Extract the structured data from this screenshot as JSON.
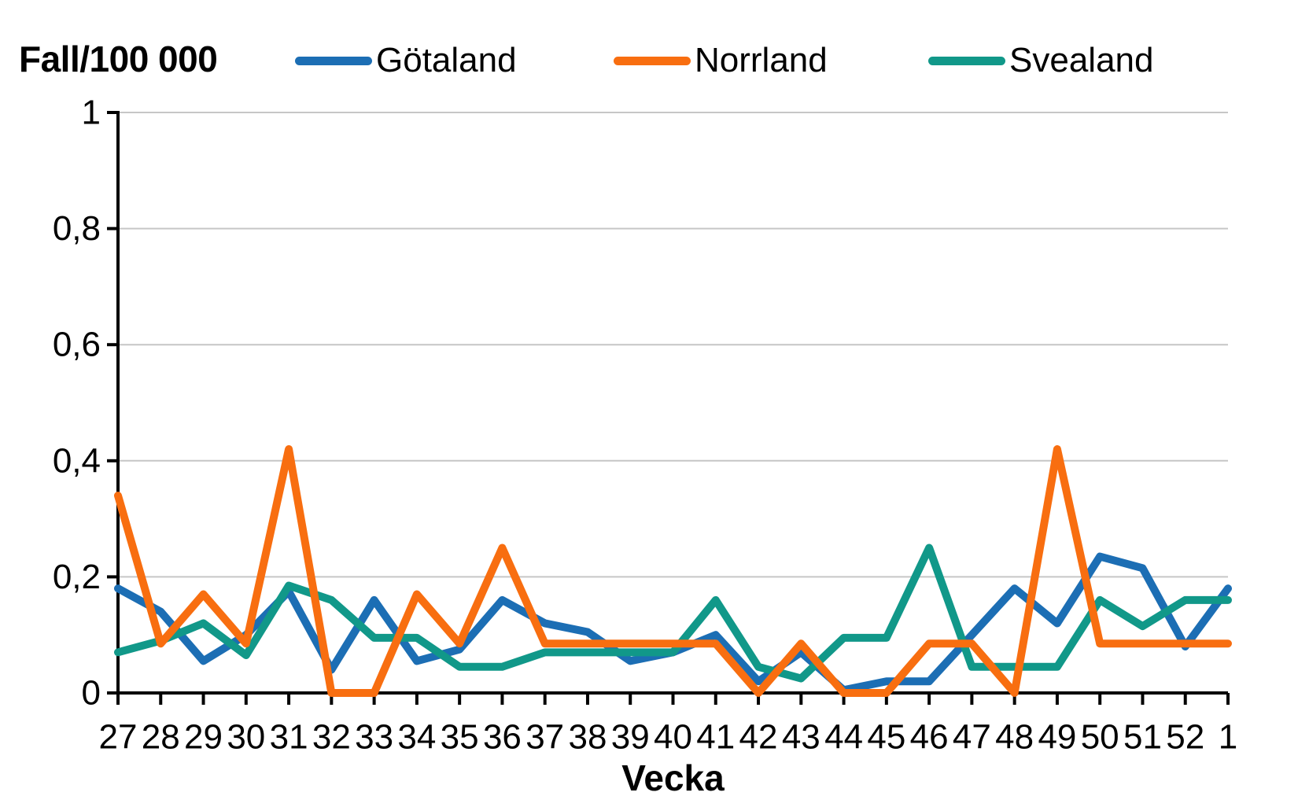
{
  "title": "Fall/100 000",
  "x_axis_title": "Vecka",
  "legend": [
    {
      "label": "Götaland",
      "color": "#1c6eb4"
    },
    {
      "label": "Norrland",
      "color": "#f86e10"
    },
    {
      "label": "Svealand",
      "color": "#119889"
    }
  ],
  "chart_data": {
    "type": "line",
    "title": "Fall/100 000",
    "xlabel": "Vecka",
    "ylabel": "Fall/100 000",
    "ylim": [
      0,
      1
    ],
    "grid": true,
    "legend_position": "top",
    "gridline_color": "#c6c6c6",
    "axis_color": "#000000",
    "y_ticks": [
      {
        "value": 0,
        "label": "0"
      },
      {
        "value": 0.2,
        "label": "0,2"
      },
      {
        "value": 0.4,
        "label": "0,4"
      },
      {
        "value": 0.6,
        "label": "0,6"
      },
      {
        "value": 0.8,
        "label": "0,8"
      },
      {
        "value": 1,
        "label": "1"
      }
    ],
    "categories": [
      "27",
      "28",
      "29",
      "30",
      "31",
      "32",
      "33",
      "34",
      "35",
      "36",
      "37",
      "38",
      "39",
      "40",
      "41",
      "42",
      "43",
      "44",
      "45",
      "46",
      "47",
      "48",
      "49",
      "50",
      "51",
      "52",
      "1"
    ],
    "series": [
      {
        "name": "Götaland",
        "color": "#1c6eb4",
        "values": [
          0.18,
          0.14,
          0.055,
          0.1,
          0.175,
          0.04,
          0.16,
          0.055,
          0.075,
          0.16,
          0.12,
          0.105,
          0.055,
          0.07,
          0.1,
          0.02,
          0.07,
          0.005,
          0.02,
          0.02,
          0.1,
          0.18,
          0.12,
          0.235,
          0.215,
          0.08,
          0.18
        ]
      },
      {
        "name": "Norrland",
        "color": "#f86e10",
        "values": [
          0.34,
          0.085,
          0.17,
          0.085,
          0.42,
          0,
          0,
          0.17,
          0.085,
          0.25,
          0.085,
          0.085,
          0.085,
          0.085,
          0.085,
          0,
          0.085,
          0,
          0,
          0.085,
          0.085,
          0,
          0.42,
          0.085,
          0.085,
          0.085,
          0.085
        ]
      },
      {
        "name": "Svealand",
        "color": "#119889",
        "values": [
          0.07,
          0.09,
          0.12,
          0.065,
          0.185,
          0.16,
          0.095,
          0.095,
          0.045,
          0.045,
          0.07,
          0.07,
          0.07,
          0.07,
          0.16,
          0.045,
          0.025,
          0.095,
          0.095,
          0.25,
          0.045,
          0.045,
          0.045,
          0.16,
          0.115,
          0.16,
          0.16
        ]
      }
    ]
  }
}
